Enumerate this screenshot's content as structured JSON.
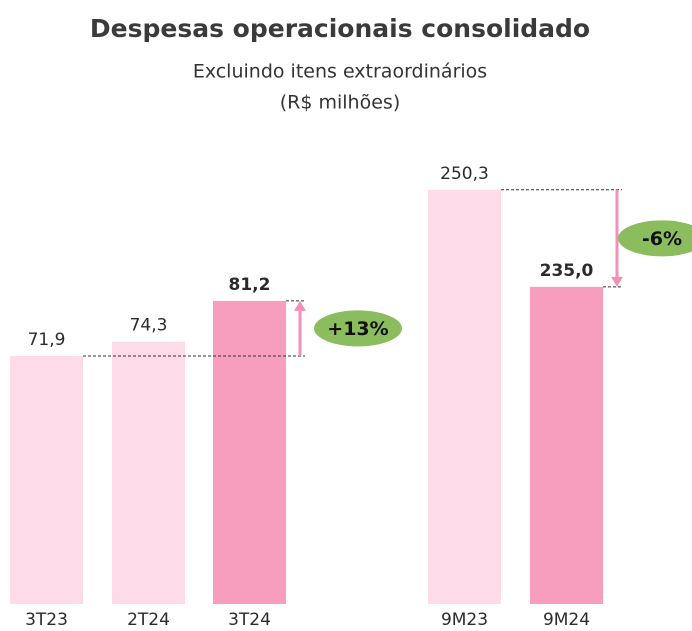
{
  "title": "Despesas operacionais consolidado",
  "subtitle": "Excluindo itens extraordinários",
  "unit": "(R$ milhões)",
  "chart_data": [
    {
      "type": "bar",
      "categories": [
        "3T23",
        "2T24",
        "3T24"
      ],
      "values": [
        71.9,
        74.3,
        81.2
      ],
      "value_labels": [
        "71,9",
        "74,3",
        "81,2"
      ],
      "colors": [
        "#fddbe8",
        "#fddbe8",
        "#f79ebf"
      ],
      "ylim": [
        30,
        105
      ],
      "annotation": "+13%"
    },
    {
      "type": "bar",
      "categories": [
        "9M23",
        "9M24"
      ],
      "values": [
        250.3,
        235.0
      ],
      "value_labels": [
        "250,3",
        "235,0"
      ],
      "colors": [
        "#fddbe8",
        "#f79ebf"
      ],
      "ylim": [
        185,
        255
      ],
      "annotation": "-6%"
    }
  ]
}
